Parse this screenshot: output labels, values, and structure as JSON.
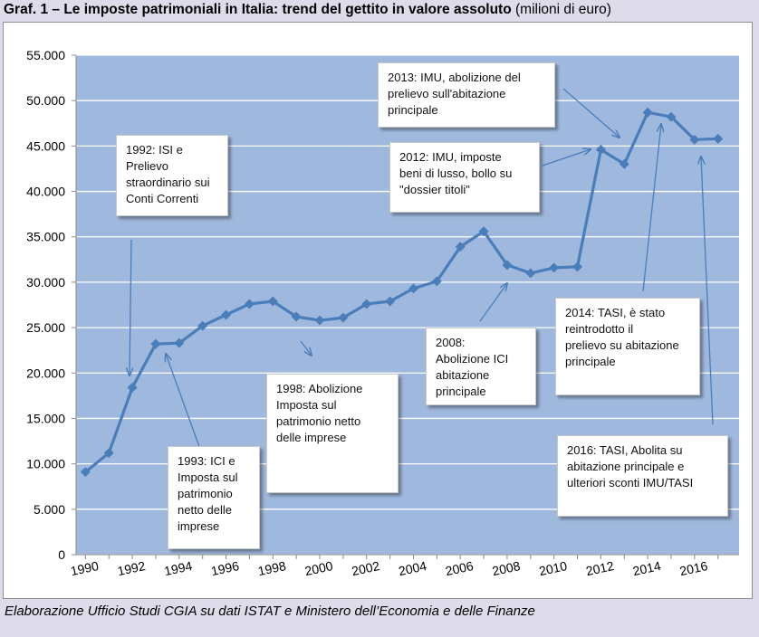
{
  "title": {
    "bold": "Graf. 1 – Le imposte patrimoniali in Italia: trend del gettito in valore assoluto",
    "normal": " (milioni di euro)"
  },
  "source": "Elaborazione Ufficio Studi CGIA su dati ISTAT e Ministero dell’Economia e delle Finanze",
  "colors": {
    "line": "#4a7ebb",
    "plot_bg": "#9fb8dd",
    "grid": "#ffffff",
    "page_bg": "#dedcea"
  },
  "chart_data": {
    "type": "line",
    "title": "Le imposte patrimoniali in Italia: trend del gettito in valore assoluto",
    "ylabel": "milioni di euro",
    "ylim": [
      0,
      55000
    ],
    "yticks": [
      "0",
      "5.000",
      "10.000",
      "15.000",
      "20.000",
      "25.000",
      "30.000",
      "35.000",
      "40.000",
      "45.000",
      "50.000",
      "55.000"
    ],
    "xticks": [
      "1990",
      "1992",
      "1994",
      "1996",
      "1998",
      "2000",
      "2002",
      "2004",
      "2006",
      "2008",
      "2010",
      "2012",
      "2014",
      "2016"
    ],
    "grid": true,
    "series": [
      {
        "x": [
          1990,
          1991,
          1992,
          1993,
          1994,
          1995,
          1996,
          1997,
          1998,
          1999,
          2000,
          2001,
          2002,
          2003,
          2004,
          2005,
          2006,
          2007,
          2008,
          2009,
          2010,
          2011,
          2012,
          2013,
          2014,
          2015,
          2016,
          2017
        ],
        "values": [
          9100,
          11200,
          18400,
          23200,
          23300,
          25200,
          26400,
          27600,
          27900,
          26200,
          25800,
          26100,
          27600,
          27900,
          29300,
          30100,
          33900,
          35600,
          31900,
          31000,
          31600,
          31700,
          44600,
          43000,
          48700,
          48200,
          45700,
          45800
        ]
      }
    ],
    "annotations": [
      {
        "text": "2013: IMU, abolizione del\nprelievo sull'abitazione\nprincipale",
        "year": 2013
      },
      {
        "text": "1992: ISI e\nPrelievo\nstraordinario sui\nConti Correnti",
        "year": 1992
      },
      {
        "text": "2012: IMU, imposte\nbeni di lusso,  bollo su\n\"dossier  titoli\"",
        "year": 2012
      },
      {
        "text": "2008:\nAbolizione ICI\nabitazione\nprincipale",
        "year": 2008
      },
      {
        "text": "2014: TASI, è stato\nreintrodotto il\nprelievo su abitazione\nprincipale",
        "year": 2014
      },
      {
        "text": "1998: Abolizione\nImposta sul\npatrimonio netto\ndelle imprese",
        "year": 1998
      },
      {
        "text": "1993: ICI e\nImposta sul\npatrimonio\nnetto delle\nimprese",
        "year": 1993
      },
      {
        "text": "2016: TASI, Abolita su\nabitazione principale e\nulteriori sconti IMU/TASI",
        "year": 2016
      }
    ]
  }
}
